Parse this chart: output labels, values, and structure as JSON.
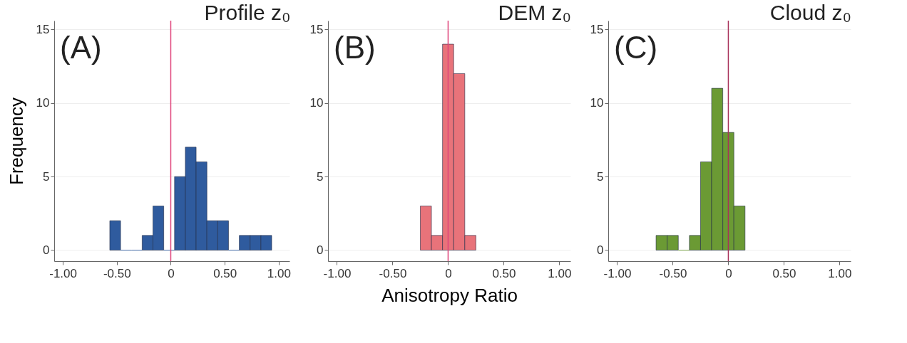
{
  "chart_data": [
    {
      "type": "histogram",
      "title": "Profile z₀",
      "ylabel": "Frequency",
      "annotations": [
        "(A)"
      ],
      "bins": [
        -0.565,
        -0.465,
        -0.365,
        -0.265,
        -0.165,
        -0.065,
        0.035,
        0.135,
        0.235,
        0.335,
        0.435,
        0.535,
        0.635,
        0.735,
        0.835,
        0.935
      ],
      "values": [
        2,
        0,
        0,
        1,
        3,
        0,
        5,
        7,
        6,
        2,
        2,
        0,
        1,
        1,
        1
      ],
      "color": "#2f5b9e",
      "xlim": [
        -1.08,
        1.1
      ],
      "xticks": [
        {
          "value": -1,
          "label": "-1.00"
        },
        {
          "value": -0.5,
          "label": "-0.50"
        },
        {
          "value": 0,
          "label": "0"
        },
        {
          "value": 0.5,
          "label": "0.50"
        },
        {
          "value": 1,
          "label": "1.00"
        }
      ],
      "ylim": [
        -0.75,
        15.6
      ],
      "yticks": [
        0,
        5,
        10,
        15
      ],
      "grid": "y",
      "ref_lines": [
        {
          "axis": "x",
          "value": 0,
          "color": "#e0457b"
        }
      ]
    },
    {
      "type": "histogram",
      "title": "DEM z₀",
      "xlabel": "Anisotropy Ratio",
      "annotations": [
        "(B)"
      ],
      "bins": [
        -0.25,
        -0.15,
        -0.05,
        0.05,
        0.15,
        0.25
      ],
      "values": [
        3,
        1,
        14,
        12,
        1
      ],
      "color": "#e8737a",
      "xlim": [
        -1.08,
        1.1
      ],
      "xticks": [
        {
          "value": -1,
          "label": "-1.00"
        },
        {
          "value": -0.5,
          "label": "-0.50"
        },
        {
          "value": 0,
          "label": "0"
        },
        {
          "value": 0.5,
          "label": "0.50"
        },
        {
          "value": 1,
          "label": "1.00"
        }
      ],
      "ylim": [
        -0.75,
        15.6
      ],
      "yticks": [
        0,
        5,
        10,
        15
      ],
      "grid": "y",
      "ref_lines": [
        {
          "axis": "x",
          "value": 0,
          "color": "#e0457b"
        }
      ]
    },
    {
      "type": "histogram",
      "title": "Cloud z₀",
      "annotations": [
        "(C)"
      ],
      "bins": [
        -0.65,
        -0.55,
        -0.45,
        -0.35,
        -0.25,
        -0.15,
        -0.05,
        0.05,
        0.15
      ],
      "values": [
        1,
        1,
        0,
        1,
        6,
        11,
        8,
        3
      ],
      "color": "#6b9a34",
      "xlim": [
        -1.08,
        1.1
      ],
      "xticks": [
        {
          "value": -1,
          "label": "-1.00"
        },
        {
          "value": -0.5,
          "label": "-0.50"
        },
        {
          "value": 0,
          "label": "0"
        },
        {
          "value": 0.5,
          "label": "0.50"
        },
        {
          "value": 1,
          "label": "1.00"
        }
      ],
      "ylim": [
        -0.75,
        15.6
      ],
      "yticks": [
        0,
        5,
        10,
        15
      ],
      "grid": "y",
      "ref_lines": [
        {
          "axis": "x",
          "value": 0,
          "color": "#a8325a"
        }
      ]
    }
  ]
}
